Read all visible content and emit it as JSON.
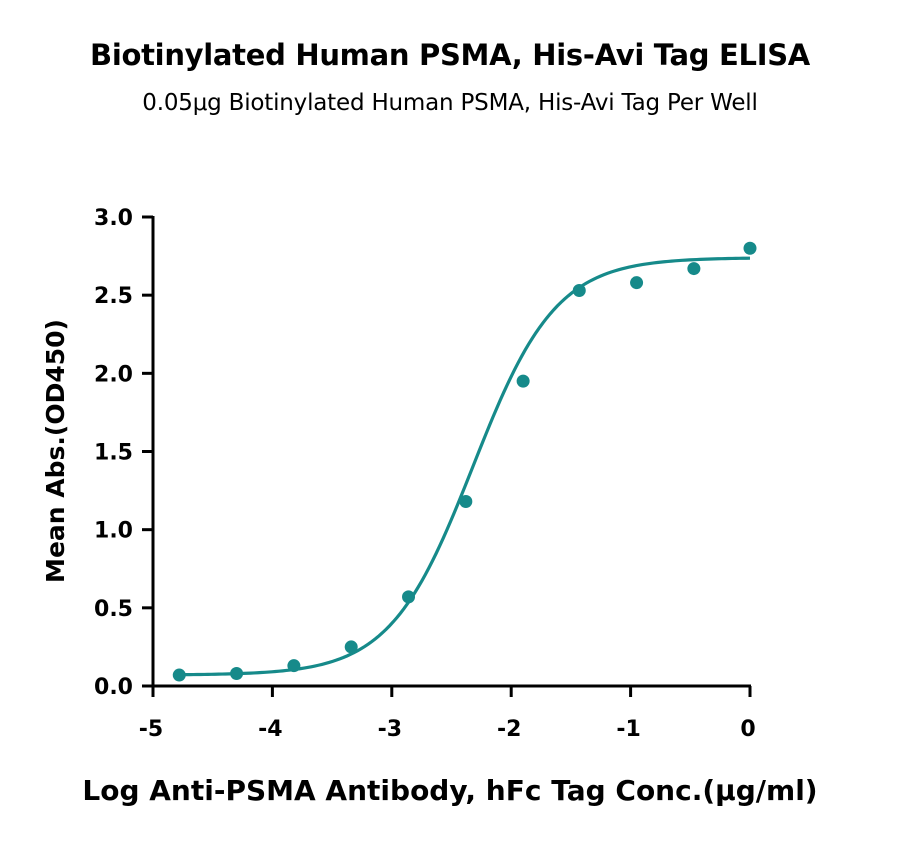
{
  "header": {
    "title": "Biotinylated Human PSMA, His-Avi Tag ELISA",
    "subtitle": "0.05μg Biotinylated Human PSMA, His-Avi Tag Per Well"
  },
  "colors": {
    "series": "#168a8a",
    "axis": "#000000"
  },
  "chart_data": {
    "type": "scatter",
    "title": "Biotinylated Human PSMA, His-Avi Tag ELISA",
    "subtitle": "0.05μg Biotinylated Human PSMA, His-Avi Tag Per Well",
    "xlabel": "Log Anti-PSMA Antibody, hFc Tag Conc.(μg/ml)",
    "ylabel": "Mean Abs.(OD450)",
    "xlim": [
      -5,
      0
    ],
    "ylim": [
      0,
      3.0
    ],
    "x_ticks": [
      -5,
      -4,
      -3,
      -2,
      -1,
      0
    ],
    "x_tick_labels": [
      "-5",
      "-4",
      "-3",
      "-2",
      "-1",
      "0"
    ],
    "y_ticks": [
      0,
      0.5,
      1.0,
      1.5,
      2.0,
      2.5,
      3.0
    ],
    "y_tick_labels": [
      "0.0",
      "0.5",
      "1.0",
      "1.5",
      "2.0",
      "2.5",
      "3.0"
    ],
    "grid": false,
    "series": [
      {
        "x": [
          -4.78,
          -4.3,
          -3.82,
          -3.34,
          -2.86,
          -2.38,
          -1.9,
          -1.43,
          -0.95,
          -0.47,
          0.0
        ],
        "y": [
          0.07,
          0.08,
          0.13,
          0.25,
          0.57,
          1.18,
          1.95,
          2.53,
          2.58,
          2.67,
          2.8
        ]
      }
    ],
    "fit": {
      "model": "4PL",
      "bottom": 0.07,
      "top": 2.74,
      "logEC50": -2.32,
      "hill": 1.25
    }
  }
}
